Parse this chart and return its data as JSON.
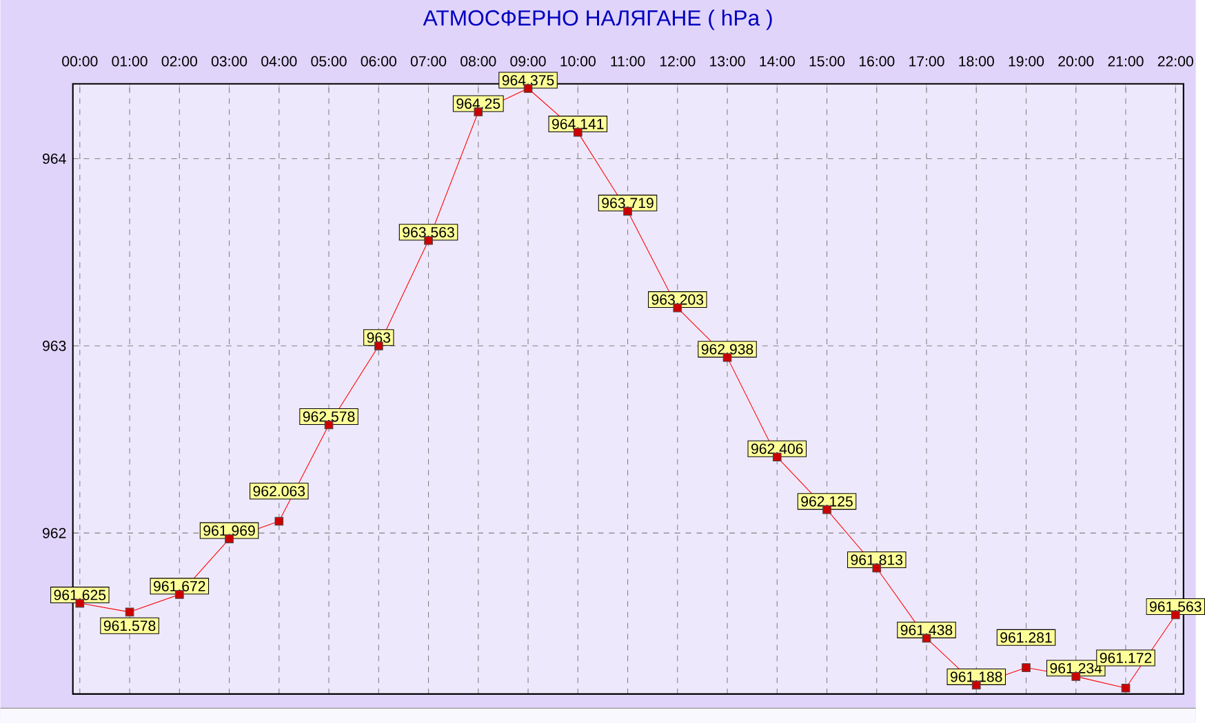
{
  "chart_data": {
    "type": "line",
    "title": "АТМОСФЕРНО НАЛЯГАНЕ  ( hPa )",
    "categories": [
      "00:00",
      "01:00",
      "02:00",
      "03:00",
      "04:00",
      "05:00",
      "06:00",
      "07:00",
      "08:00",
      "09:00",
      "10:00",
      "11:00",
      "12:00",
      "13:00",
      "14:00",
      "15:00",
      "16:00",
      "17:00",
      "18:00",
      "19:00",
      "20:00",
      "21:00",
      "22:00"
    ],
    "values": [
      961.625,
      961.578,
      961.672,
      961.969,
      962.063,
      962.578,
      963,
      963.563,
      964.25,
      964.375,
      964.141,
      963.719,
      963.203,
      962.938,
      962.406,
      962.125,
      961.813,
      961.438,
      961.188,
      961.281,
      961.234,
      961.172,
      961.563
    ],
    "color": "#ff0000",
    "marker": "square",
    "data_labels": true,
    "grid": true,
    "ylim": [
      961.14,
      964.4
    ],
    "yticks": [
      962,
      963,
      964
    ]
  }
}
